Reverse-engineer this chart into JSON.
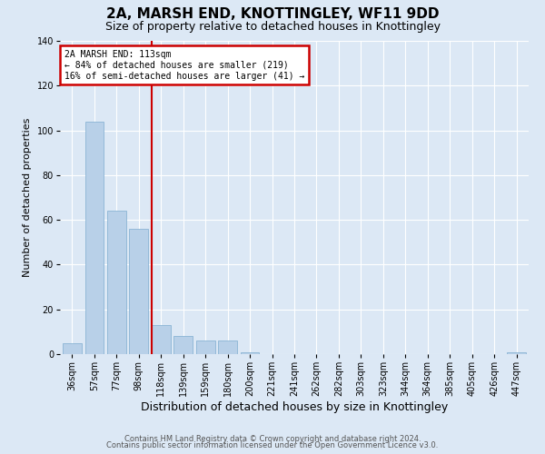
{
  "title1": "2A, MARSH END, KNOTTINGLEY, WF11 9DD",
  "title2": "Size of property relative to detached houses in Knottingley",
  "xlabel": "Distribution of detached houses by size in Knottingley",
  "ylabel": "Number of detached properties",
  "bar_labels": [
    "36sqm",
    "57sqm",
    "77sqm",
    "98sqm",
    "118sqm",
    "139sqm",
    "159sqm",
    "180sqm",
    "200sqm",
    "221sqm",
    "241sqm",
    "262sqm",
    "282sqm",
    "303sqm",
    "323sqm",
    "344sqm",
    "364sqm",
    "385sqm",
    "405sqm",
    "426sqm",
    "447sqm"
  ],
  "bar_values": [
    5,
    104,
    64,
    56,
    13,
    8,
    6,
    6,
    1,
    0,
    0,
    0,
    0,
    0,
    0,
    0,
    0,
    0,
    0,
    0,
    1
  ],
  "bar_color": "#b8d0e8",
  "bar_edge_color": "#8ab4d4",
  "vline_color": "#cc0000",
  "vline_index": 4,
  "annotation_title": "2A MARSH END: 113sqm",
  "annotation_line1": "← 84% of detached houses are smaller (219)",
  "annotation_line2": "16% of semi-detached houses are larger (41) →",
  "annotation_box_edgecolor": "#cc0000",
  "ylim": [
    0,
    140
  ],
  "yticks": [
    0,
    20,
    40,
    60,
    80,
    100,
    120,
    140
  ],
  "bg_color": "#dce8f5",
  "plot_bg_color": "#dce8f5",
  "footer1": "Contains HM Land Registry data © Crown copyright and database right 2024.",
  "footer2": "Contains public sector information licensed under the Open Government Licence v3.0.",
  "grid_color": "#ffffff",
  "title1_fontsize": 11,
  "title2_fontsize": 9,
  "xlabel_fontsize": 9,
  "ylabel_fontsize": 8,
  "annotation_fontsize": 7,
  "tick_fontsize": 7,
  "footer_fontsize": 6
}
